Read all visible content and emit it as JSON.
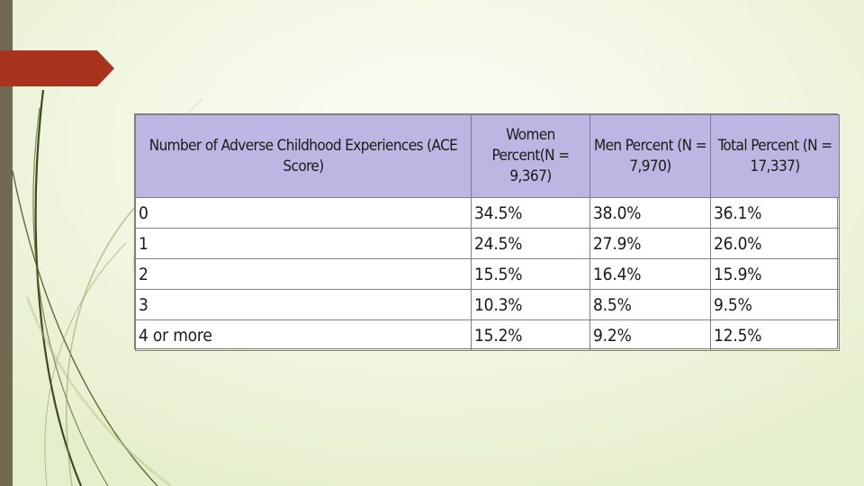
{
  "slide": {
    "accent_color": "#a8321e",
    "header_color": "#bdb6e3"
  },
  "table": {
    "headers": [
      "Number of Adverse Childhood Experiences (ACE Score)",
      "Women Percent(N = 9,367)",
      "Men Percent (N = 7,970)",
      "Total Percent (N = 17,337)"
    ],
    "rows": [
      [
        "0",
        "34.5%",
        "38.0%",
        "36.1%"
      ],
      [
        "1",
        "24.5%",
        "27.9%",
        "26.0%"
      ],
      [
        "2",
        "15.5%",
        "16.4%",
        "15.9%"
      ],
      [
        "3",
        "10.3%",
        "8.5%",
        "9.5%"
      ],
      [
        "4 or more",
        "15.2%",
        "9.2%",
        "12.5%"
      ]
    ]
  }
}
